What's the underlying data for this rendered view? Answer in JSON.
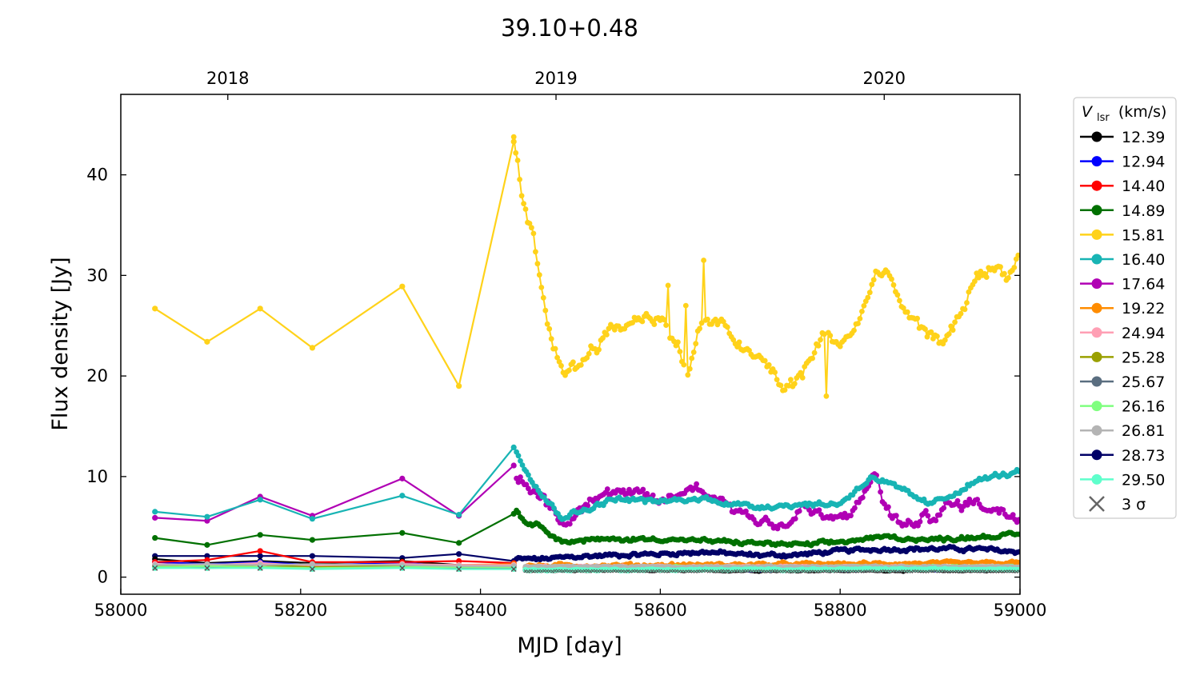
{
  "chart_data": {
    "type": "line",
    "title": "39.10+0.48",
    "xlabel": "MJD [day]",
    "ylabel": "Flux density [Jy]",
    "xlim": [
      58000,
      59000
    ],
    "ylim": [
      -1.7,
      48
    ],
    "x_ticks": [
      58000,
      58200,
      58400,
      58600,
      58800,
      59000
    ],
    "y_ticks": [
      0,
      10,
      20,
      30,
      40
    ],
    "top_axis": {
      "ticks": [
        {
          "label": "2018",
          "mjd": 58119
        },
        {
          "label": "2019",
          "mjd": 58484
        },
        {
          "label": "2020",
          "mjd": 58849
        }
      ]
    },
    "grid": false,
    "legend": {
      "title_main": "V",
      "title_sub": "lsr",
      "title_unit": "(km/s)",
      "placement": "outside-right",
      "sigma_label": "3 σ"
    },
    "series": [
      {
        "name": "12.39",
        "color": "#000000",
        "sparse": [
          [
            58038,
            1.8
          ],
          [
            58096,
            1.4
          ],
          [
            58155,
            1.6
          ],
          [
            58213,
            1.4
          ],
          [
            58313,
            1.6
          ],
          [
            58376,
            1.2
          ],
          [
            58437,
            1.2
          ]
        ],
        "dense": [
          [
            58450,
            0.7
          ],
          [
            59000,
            0.7
          ]
        ],
        "noise": 0.12
      },
      {
        "name": "12.94",
        "color": "#0000ff",
        "sparse": [
          [
            58038,
            1.5
          ],
          [
            58096,
            1.3
          ],
          [
            58155,
            1.5
          ],
          [
            58213,
            1.2
          ],
          [
            58313,
            1.4
          ],
          [
            58376,
            1.1
          ],
          [
            58437,
            1.1
          ]
        ],
        "dense": [
          [
            58450,
            0.8
          ],
          [
            59000,
            0.8
          ]
        ],
        "noise": 0.12
      },
      {
        "name": "14.40",
        "color": "#ff0000",
        "sparse": [
          [
            58038,
            1.5
          ],
          [
            58096,
            1.7
          ],
          [
            58155,
            2.6
          ],
          [
            58213,
            1.5
          ],
          [
            58313,
            1.5
          ],
          [
            58376,
            1.6
          ],
          [
            58437,
            1.4
          ]
        ],
        "dense": [
          [
            58450,
            1.0
          ],
          [
            59000,
            1.0
          ]
        ],
        "noise": 0.12
      },
      {
        "name": "14.89",
        "color": "#007000",
        "sparse": [
          [
            58038,
            3.9
          ],
          [
            58096,
            3.2
          ],
          [
            58155,
            4.2
          ],
          [
            58213,
            3.7
          ],
          [
            58313,
            4.4
          ],
          [
            58376,
            3.4
          ],
          [
            58437,
            6.3
          ]
        ],
        "dense": [
          [
            58440,
            6.5
          ],
          [
            58450,
            5.5
          ],
          [
            58470,
            5.0
          ],
          [
            58490,
            3.5
          ],
          [
            58520,
            3.7
          ],
          [
            58600,
            3.8
          ],
          [
            58700,
            3.4
          ],
          [
            58760,
            3.2
          ],
          [
            58800,
            3.5
          ],
          [
            58850,
            4.0
          ],
          [
            58900,
            3.7
          ],
          [
            58950,
            4.0
          ],
          [
            59000,
            4.2
          ]
        ],
        "noise": 0.35
      },
      {
        "name": "15.81",
        "color": "#ffd21a",
        "sparse": [
          [
            58038,
            26.7
          ],
          [
            58096,
            23.4
          ],
          [
            58155,
            26.7
          ],
          [
            58213,
            22.8
          ],
          [
            58313,
            28.9
          ],
          [
            58376,
            19.0
          ],
          [
            58437,
            43.3
          ]
        ],
        "dense": [
          [
            58437,
            43.3
          ],
          [
            58440,
            42
          ],
          [
            58445,
            38
          ],
          [
            58450,
            36
          ],
          [
            58460,
            33
          ],
          [
            58468,
            28
          ],
          [
            58480,
            23
          ],
          [
            58495,
            20.5
          ],
          [
            58510,
            21
          ],
          [
            58525,
            23
          ],
          [
            58545,
            24.5
          ],
          [
            58570,
            25.5
          ],
          [
            58590,
            26.2
          ],
          [
            58605,
            25
          ],
          [
            58620,
            23
          ],
          [
            58630,
            20
          ],
          [
            58645,
            25
          ],
          [
            58660,
            25.5
          ],
          [
            58680,
            24
          ],
          [
            58700,
            22
          ],
          [
            58720,
            21
          ],
          [
            58740,
            18.5
          ],
          [
            58760,
            20.5
          ],
          [
            58780,
            24
          ],
          [
            58800,
            23.3
          ],
          [
            58820,
            25
          ],
          [
            58840,
            30.5
          ],
          [
            58860,
            29
          ],
          [
            58875,
            26
          ],
          [
            58890,
            24.5
          ],
          [
            58905,
            23.5
          ],
          [
            58920,
            24
          ],
          [
            58935,
            26
          ],
          [
            58950,
            30
          ],
          [
            58970,
            30.8
          ],
          [
            58985,
            30
          ],
          [
            59000,
            32
          ]
        ],
        "noise": 1.2,
        "spikes": [
          [
            58608,
            29
          ],
          [
            58628,
            27
          ],
          [
            58648,
            31.5
          ],
          [
            58785,
            18
          ]
        ]
      },
      {
        "name": "16.40",
        "color": "#18b4b4",
        "sparse": [
          [
            58038,
            6.5
          ],
          [
            58096,
            6.0
          ],
          [
            58155,
            7.7
          ],
          [
            58213,
            5.8
          ],
          [
            58313,
            8.1
          ],
          [
            58376,
            6.2
          ],
          [
            58437,
            12.9
          ]
        ],
        "dense": [
          [
            58440,
            12.5
          ],
          [
            58455,
            10
          ],
          [
            58470,
            8
          ],
          [
            58490,
            6
          ],
          [
            58510,
            6.5
          ],
          [
            58550,
            7.8
          ],
          [
            58600,
            7.5
          ],
          [
            58650,
            7.8
          ],
          [
            58700,
            7
          ],
          [
            58750,
            7.2
          ],
          [
            58800,
            7.3
          ],
          [
            58835,
            10
          ],
          [
            58860,
            9
          ],
          [
            58900,
            7.2
          ],
          [
            58920,
            8
          ],
          [
            58950,
            9.5
          ],
          [
            58970,
            10
          ],
          [
            59000,
            10.5
          ]
        ],
        "noise": 0.45
      },
      {
        "name": "17.64",
        "color": "#b000b4",
        "sparse": [
          [
            58038,
            5.9
          ],
          [
            58096,
            5.6
          ],
          [
            58155,
            8.0
          ],
          [
            58213,
            6.1
          ],
          [
            58313,
            9.8
          ],
          [
            58376,
            6.1
          ],
          [
            58437,
            11.1
          ]
        ],
        "dense": [
          [
            58440,
            10
          ],
          [
            58460,
            8.5
          ],
          [
            58480,
            7
          ],
          [
            58495,
            5
          ],
          [
            58520,
            8
          ],
          [
            58550,
            8.5
          ],
          [
            58580,
            8
          ],
          [
            58600,
            7.5
          ],
          [
            58640,
            9
          ],
          [
            58670,
            7.5
          ],
          [
            58700,
            6
          ],
          [
            58740,
            5
          ],
          [
            58760,
            7
          ],
          [
            58790,
            5.5
          ],
          [
            58820,
            7
          ],
          [
            58838,
            10.5
          ],
          [
            58850,
            7
          ],
          [
            58870,
            5
          ],
          [
            58900,
            6
          ],
          [
            58920,
            7
          ],
          [
            58950,
            7.5
          ],
          [
            58980,
            6.5
          ],
          [
            59000,
            6
          ]
        ],
        "noise": 1.0
      },
      {
        "name": "19.22",
        "color": "#ff8c00",
        "sparse": [
          [
            58038,
            1.2
          ],
          [
            58096,
            1.1
          ],
          [
            58155,
            1.3
          ],
          [
            58213,
            1.0
          ],
          [
            58313,
            1.3
          ],
          [
            58376,
            1.2
          ],
          [
            58437,
            1.3
          ]
        ],
        "dense": [
          [
            58450,
            1.1
          ],
          [
            59000,
            1.4
          ]
        ],
        "noise": 0.3
      },
      {
        "name": "24.94",
        "color": "#ff9fb4",
        "sparse": [
          [
            58038,
            1.3
          ],
          [
            58096,
            1.2
          ],
          [
            58155,
            1.4
          ],
          [
            58213,
            1.1
          ],
          [
            58313,
            1.3
          ],
          [
            58376,
            1.2
          ],
          [
            58437,
            1.2
          ]
        ],
        "dense": [
          [
            58450,
            1.0
          ],
          [
            59000,
            1.0
          ]
        ],
        "noise": 0.15
      },
      {
        "name": "25.28",
        "color": "#9aa000",
        "sparse": [
          [
            58038,
            1.1
          ],
          [
            58096,
            1.0
          ],
          [
            58155,
            1.2
          ],
          [
            58213,
            1.0
          ],
          [
            58313,
            1.1
          ],
          [
            58376,
            1.0
          ],
          [
            58437,
            1.0
          ]
        ],
        "dense": [
          [
            58450,
            0.9
          ],
          [
            59000,
            0.9
          ]
        ],
        "noise": 0.15
      },
      {
        "name": "25.67",
        "color": "#5a6e80",
        "sparse": [
          [
            58038,
            1.0
          ],
          [
            58096,
            0.9
          ],
          [
            58155,
            1.0
          ],
          [
            58213,
            0.9
          ],
          [
            58313,
            1.0
          ],
          [
            58376,
            0.9
          ],
          [
            58437,
            0.9
          ]
        ],
        "dense": [
          [
            58450,
            0.8
          ],
          [
            59000,
            0.8
          ]
        ],
        "noise": 0.1
      },
      {
        "name": "26.16",
        "color": "#7fff7f",
        "sparse": [
          [
            58038,
            1.0
          ],
          [
            58096,
            1.1
          ],
          [
            58155,
            1.0
          ],
          [
            58213,
            0.9
          ],
          [
            58313,
            1.0
          ],
          [
            58376,
            1.0
          ],
          [
            58437,
            1.0
          ]
        ],
        "dense": [
          [
            58450,
            0.9
          ],
          [
            59000,
            1.0
          ]
        ],
        "noise": 0.15
      },
      {
        "name": "26.81",
        "color": "#b4b4b4",
        "sparse": [
          [
            58038,
            1.2
          ],
          [
            58096,
            1.3
          ],
          [
            58155,
            1.2
          ],
          [
            58213,
            1.3
          ],
          [
            58313,
            1.2
          ],
          [
            58376,
            1.1
          ],
          [
            58437,
            1.1
          ]
        ],
        "dense": [
          [
            58450,
            1.0
          ],
          [
            59000,
            1.0
          ]
        ],
        "noise": 0.15
      },
      {
        "name": "28.73",
        "color": "#000066",
        "sparse": [
          [
            58038,
            2.1
          ],
          [
            58096,
            2.1
          ],
          [
            58155,
            2.1
          ],
          [
            58213,
            2.1
          ],
          [
            58313,
            1.9
          ],
          [
            58376,
            2.3
          ],
          [
            58437,
            1.6
          ]
        ],
        "dense": [
          [
            58440,
            1.8
          ],
          [
            58470,
            1.8
          ],
          [
            58500,
            2.0
          ],
          [
            58550,
            2.2
          ],
          [
            58600,
            2.3
          ],
          [
            58650,
            2.5
          ],
          [
            58700,
            2.2
          ],
          [
            58750,
            2.2
          ],
          [
            58800,
            2.6
          ],
          [
            58850,
            2.8
          ],
          [
            58900,
            2.8
          ],
          [
            58950,
            2.8
          ],
          [
            59000,
            2.5
          ]
        ],
        "noise": 0.35
      },
      {
        "name": "29.50",
        "color": "#5fffcc",
        "sparse": [
          [
            58038,
            0.9
          ],
          [
            58096,
            0.9
          ],
          [
            58155,
            0.9
          ],
          [
            58213,
            0.8
          ],
          [
            58313,
            0.9
          ],
          [
            58376,
            0.8
          ],
          [
            58437,
            0.8
          ]
        ],
        "dense": [
          [
            58450,
            0.7
          ],
          [
            59000,
            0.8
          ]
        ],
        "noise": 0.12
      }
    ],
    "sigma3": {
      "color": "#555555",
      "points": [
        [
          58038,
          0.9
        ],
        [
          58096,
          0.9
        ],
        [
          58155,
          0.9
        ],
        [
          58213,
          0.8
        ],
        [
          58313,
          0.9
        ],
        [
          58376,
          0.8
        ],
        [
          58437,
          0.8
        ],
        [
          59000,
          0.55
        ]
      ]
    }
  }
}
